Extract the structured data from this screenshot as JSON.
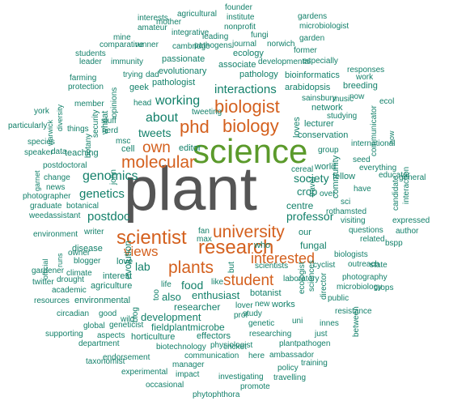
{
  "colors": {
    "primary": "#555555",
    "green": "#5b9a2b",
    "orange": "#d4601e",
    "teal": "#13806a"
  },
  "words": [
    {
      "text": "plant",
      "color": "primary"
    },
    {
      "text": "science",
      "color": "green"
    },
    {
      "text": "biology",
      "color": "orange"
    },
    {
      "text": "biologist",
      "color": "orange"
    },
    {
      "text": "phd",
      "color": "orange"
    },
    {
      "text": "research",
      "color": "orange"
    },
    {
      "text": "scientist",
      "color": "orange"
    },
    {
      "text": "university",
      "color": "orange"
    },
    {
      "text": "plants",
      "color": "orange"
    },
    {
      "text": "student",
      "color": "orange"
    },
    {
      "text": "molecular",
      "color": "orange"
    },
    {
      "text": "own",
      "color": "orange"
    },
    {
      "text": "interested",
      "color": "orange"
    },
    {
      "text": "views",
      "color": "orange"
    },
    {
      "text": "interactions",
      "color": "teal"
    },
    {
      "text": "working",
      "color": "teal"
    },
    {
      "text": "about",
      "color": "teal"
    },
    {
      "text": "tweets",
      "color": "teal"
    },
    {
      "text": "genomics",
      "color": "teal"
    },
    {
      "text": "genetics",
      "color": "teal"
    },
    {
      "text": "postdoc",
      "color": "teal"
    },
    {
      "text": "professor",
      "color": "teal"
    },
    {
      "text": "society",
      "color": "teal"
    },
    {
      "text": "crop",
      "color": "teal"
    },
    {
      "text": "lab",
      "color": "teal"
    },
    {
      "text": "food",
      "color": "teal"
    },
    {
      "text": "enthusiast",
      "color": "teal"
    },
    {
      "text": "researcher",
      "color": "teal"
    },
    {
      "text": "also",
      "color": "teal"
    },
    {
      "text": "development",
      "color": "teal"
    },
    {
      "text": "fieldplantmicrobe",
      "color": "teal"
    },
    {
      "text": "effectors",
      "color": "teal"
    },
    {
      "text": "horticulture",
      "color": "teal"
    },
    {
      "text": "environmental",
      "color": "teal"
    },
    {
      "text": "agriculture",
      "color": "teal"
    },
    {
      "text": "interest",
      "color": "teal"
    },
    {
      "text": "love",
      "color": "teal"
    },
    {
      "text": "disease",
      "color": "teal"
    },
    {
      "text": "evolution",
      "color": "teal"
    },
    {
      "text": "pathologist",
      "color": "teal"
    },
    {
      "text": "evolutionary",
      "color": "teal"
    },
    {
      "text": "associate",
      "color": "teal"
    },
    {
      "text": "passionate",
      "color": "teal"
    },
    {
      "text": "cambridge",
      "color": "teal"
    },
    {
      "text": "ecology",
      "color": "teal"
    },
    {
      "text": "pathology",
      "color": "teal"
    },
    {
      "text": "network",
      "color": "teal"
    },
    {
      "text": "lecturer",
      "color": "teal"
    },
    {
      "text": "conservation",
      "color": "teal"
    },
    {
      "text": "arabidopsis",
      "color": "teal"
    },
    {
      "text": "bioinformatics",
      "color": "teal"
    },
    {
      "text": "breeding",
      "color": "teal"
    },
    {
      "text": "rothamsted",
      "color": "teal"
    },
    {
      "text": "fungal",
      "color": "teal"
    },
    {
      "text": "centre",
      "color": "teal"
    },
    {
      "text": "our",
      "color": "teal"
    },
    {
      "text": "world",
      "color": "teal"
    },
    {
      "text": "fellow",
      "color": "teal"
    },
    {
      "text": "group",
      "color": "teal"
    },
    {
      "text": "botanist",
      "color": "teal"
    },
    {
      "text": "scientists",
      "color": "teal"
    },
    {
      "text": "study",
      "color": "teal"
    },
    {
      "text": "genetic",
      "color": "teal"
    },
    {
      "text": "researching",
      "color": "teal"
    },
    {
      "text": "plantpathogen",
      "color": "teal"
    },
    {
      "text": "cyclist",
      "color": "teal"
    },
    {
      "text": "communication",
      "color": "teal"
    },
    {
      "text": "manager",
      "color": "teal"
    },
    {
      "text": "physiologist",
      "color": "teal"
    },
    {
      "text": "biotechnology",
      "color": "teal"
    },
    {
      "text": "cricket",
      "color": "teal"
    },
    {
      "text": "investigating",
      "color": "teal"
    },
    {
      "text": "promote",
      "color": "teal"
    },
    {
      "text": "travelling",
      "color": "teal"
    },
    {
      "text": "ambassador",
      "color": "teal"
    },
    {
      "text": "training",
      "color": "teal"
    },
    {
      "text": "policy",
      "color": "teal"
    },
    {
      "text": "here",
      "color": "teal"
    },
    {
      "text": "phytophthora",
      "color": "teal"
    },
    {
      "text": "impact",
      "color": "teal"
    },
    {
      "text": "occasional",
      "color": "teal"
    },
    {
      "text": "experimental",
      "color": "teal"
    },
    {
      "text": "taxonomist",
      "color": "teal"
    },
    {
      "text": "endorsement",
      "color": "teal"
    },
    {
      "text": "department",
      "color": "teal"
    },
    {
      "text": "global",
      "color": "teal"
    },
    {
      "text": "geneticist",
      "color": "teal"
    },
    {
      "text": "supporting",
      "color": "teal"
    },
    {
      "text": "aspects",
      "color": "teal"
    },
    {
      "text": "circadian",
      "color": "teal"
    },
    {
      "text": "good",
      "color": "teal"
    },
    {
      "text": "wild",
      "color": "teal"
    },
    {
      "text": "resources",
      "color": "teal"
    },
    {
      "text": "academic",
      "color": "teal"
    },
    {
      "text": "twitter",
      "color": "teal"
    },
    {
      "text": "drought",
      "color": "teal"
    },
    {
      "text": "gardener",
      "color": "teal"
    },
    {
      "text": "climate",
      "color": "teal"
    },
    {
      "text": "blogger",
      "color": "teal"
    },
    {
      "text": "owner",
      "color": "teal"
    },
    {
      "text": "runs",
      "color": "teal"
    },
    {
      "text": "official",
      "color": "teal"
    },
    {
      "text": "writer",
      "color": "teal"
    },
    {
      "text": "environment",
      "color": "teal"
    },
    {
      "text": "weedassistant",
      "color": "teal"
    },
    {
      "text": "graduate",
      "color": "teal"
    },
    {
      "text": "botanical",
      "color": "teal"
    },
    {
      "text": "photographer",
      "color": "teal"
    },
    {
      "text": "news",
      "color": "teal"
    },
    {
      "text": "change",
      "color": "teal"
    },
    {
      "text": "garnet",
      "color": "teal"
    },
    {
      "text": "postdoctoral",
      "color": "teal"
    },
    {
      "text": "speaker",
      "color": "teal"
    },
    {
      "text": "data",
      "color": "teal"
    },
    {
      "text": "teaching",
      "color": "teal"
    },
    {
      "text": "species",
      "color": "teal"
    },
    {
      "text": "particularly",
      "color": "teal"
    },
    {
      "text": "york",
      "color": "teal"
    },
    {
      "text": "warwick",
      "color": "teal"
    },
    {
      "text": "diversity",
      "color": "teal"
    },
    {
      "text": "things",
      "color": "teal"
    },
    {
      "text": "member",
      "color": "teal"
    },
    {
      "text": "security",
      "color": "teal"
    },
    {
      "text": "wheat",
      "color": "teal"
    },
    {
      "text": "opinions",
      "color": "teal"
    },
    {
      "text": "botany",
      "color": "teal"
    },
    {
      "text": "nerd",
      "color": "teal"
    },
    {
      "text": "msc",
      "color": "teal"
    },
    {
      "text": "cell",
      "color": "teal"
    },
    {
      "text": "stuff",
      "color": "teal"
    },
    {
      "text": "john",
      "color": "teal"
    },
    {
      "text": "head",
      "color": "teal"
    },
    {
      "text": "geek",
      "color": "teal"
    },
    {
      "text": "dad",
      "color": "teal"
    },
    {
      "text": "trying",
      "color": "teal"
    },
    {
      "text": "protection",
      "color": "teal"
    },
    {
      "text": "farming",
      "color": "teal"
    },
    {
      "text": "leader",
      "color": "teal"
    },
    {
      "text": "students",
      "color": "teal"
    },
    {
      "text": "immunity",
      "color": "teal"
    },
    {
      "text": "comparative",
      "color": "teal"
    },
    {
      "text": "runner",
      "color": "teal"
    },
    {
      "text": "mine",
      "color": "teal"
    },
    {
      "text": "amateur",
      "color": "teal"
    },
    {
      "text": "interests",
      "color": "teal"
    },
    {
      "text": "mother",
      "color": "teal"
    },
    {
      "text": "agricultural",
      "color": "teal"
    },
    {
      "text": "integrative",
      "color": "teal"
    },
    {
      "text": "leading",
      "color": "teal"
    },
    {
      "text": "institute",
      "color": "teal"
    },
    {
      "text": "founder",
      "color": "teal"
    },
    {
      "text": "nonprofit",
      "color": "teal"
    },
    {
      "text": "pathogens",
      "color": "teal"
    },
    {
      "text": "journal",
      "color": "teal"
    },
    {
      "text": "norwich",
      "color": "teal"
    },
    {
      "text": "fungi",
      "color": "teal"
    },
    {
      "text": "gardens",
      "color": "teal"
    },
    {
      "text": "microbiologist",
      "color": "teal"
    },
    {
      "text": "garden",
      "color": "teal"
    },
    {
      "text": "former",
      "color": "teal"
    },
    {
      "text": "developmental",
      "color": "teal"
    },
    {
      "text": "especially",
      "color": "teal"
    },
    {
      "text": "responses",
      "color": "teal"
    },
    {
      "text": "work",
      "color": "teal"
    },
    {
      "text": "sainsbury",
      "color": "teal"
    },
    {
      "text": "music",
      "color": "teal"
    },
    {
      "text": "now",
      "color": "teal"
    },
    {
      "text": "ecol",
      "color": "teal"
    },
    {
      "text": "tweeting",
      "color": "teal"
    },
    {
      "text": "loves",
      "color": "teal"
    },
    {
      "text": "studying",
      "color": "teal"
    },
    {
      "text": "communicator",
      "color": "teal"
    },
    {
      "text": "international",
      "color": "teal"
    },
    {
      "text": "how",
      "color": "teal"
    },
    {
      "text": "everything",
      "color": "teal"
    },
    {
      "text": "general",
      "color": "teal"
    },
    {
      "text": "seed",
      "color": "teal"
    },
    {
      "text": "educator",
      "color": "teal"
    },
    {
      "text": "cereal",
      "color": "teal"
    },
    {
      "text": "have",
      "color": "teal"
    },
    {
      "text": "community",
      "color": "teal"
    },
    {
      "text": "travel",
      "color": "teal"
    },
    {
      "text": "over",
      "color": "teal"
    },
    {
      "text": "sci",
      "color": "teal"
    },
    {
      "text": "candidate",
      "color": "teal"
    },
    {
      "text": "interaction",
      "color": "teal"
    },
    {
      "text": "visiting",
      "color": "teal"
    },
    {
      "text": "expressed",
      "color": "teal"
    },
    {
      "text": "questions",
      "color": "teal"
    },
    {
      "text": "author",
      "color": "teal"
    },
    {
      "text": "related",
      "color": "teal"
    },
    {
      "text": "bspp",
      "color": "teal"
    },
    {
      "text": "biologists",
      "color": "teal"
    },
    {
      "text": "outreach",
      "color": "teal"
    },
    {
      "text": "state",
      "color": "teal"
    },
    {
      "text": "photography",
      "color": "teal"
    },
    {
      "text": "microbiology",
      "color": "teal"
    },
    {
      "text": "crops",
      "color": "teal"
    },
    {
      "text": "public",
      "color": "teal"
    },
    {
      "text": "resistance",
      "color": "teal"
    },
    {
      "text": "ecologist",
      "color": "teal"
    },
    {
      "text": "sciences",
      "color": "teal"
    },
    {
      "text": "director",
      "color": "teal"
    },
    {
      "text": "laboratory",
      "color": "teal"
    },
    {
      "text": "uni",
      "color": "teal"
    },
    {
      "text": "innes",
      "color": "teal"
    },
    {
      "text": "just",
      "color": "teal"
    },
    {
      "text": "between",
      "color": "teal"
    },
    {
      "text": "works",
      "color": "teal"
    },
    {
      "text": "lover",
      "color": "teal"
    },
    {
      "text": "new",
      "color": "teal"
    },
    {
      "text": "prof",
      "color": "teal"
    },
    {
      "text": "who",
      "color": "teal"
    },
    {
      "text": "fan",
      "color": "teal"
    },
    {
      "text": "max",
      "color": "teal"
    },
    {
      "text": "but",
      "color": "teal"
    },
    {
      "text": "life",
      "color": "teal"
    },
    {
      "text": "like",
      "color": "teal"
    },
    {
      "text": "too",
      "color": "teal"
    },
    {
      "text": "blog",
      "color": "teal"
    },
    {
      "text": "editor",
      "color": "teal"
    },
    {
      "text": "all",
      "color": "teal"
    }
  ]
}
